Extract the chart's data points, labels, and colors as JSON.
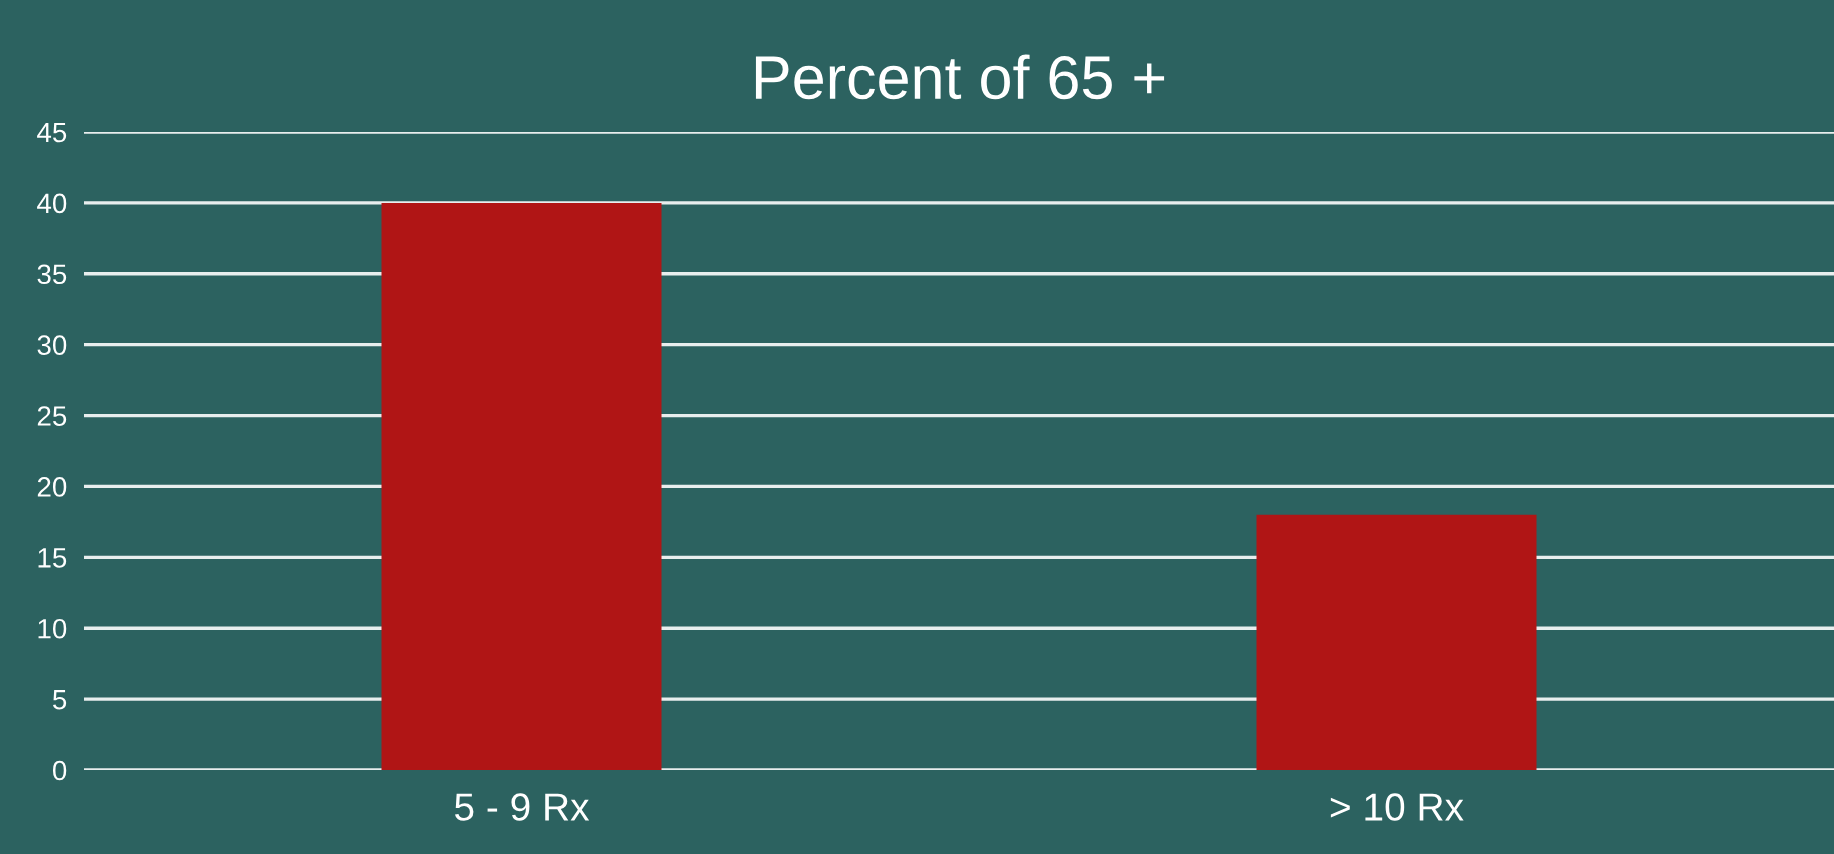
{
  "chart_data": {
    "type": "bar",
    "title": "Percent of 65 +",
    "categories": [
      "5 - 9 Rx",
      "> 10 Rx"
    ],
    "values": [
      40,
      18
    ],
    "color": "#b01515",
    "ylim": [
      0,
      45
    ],
    "yticks": [
      0,
      5,
      10,
      15,
      20,
      25,
      30,
      35,
      40,
      45
    ],
    "grid": "y"
  }
}
